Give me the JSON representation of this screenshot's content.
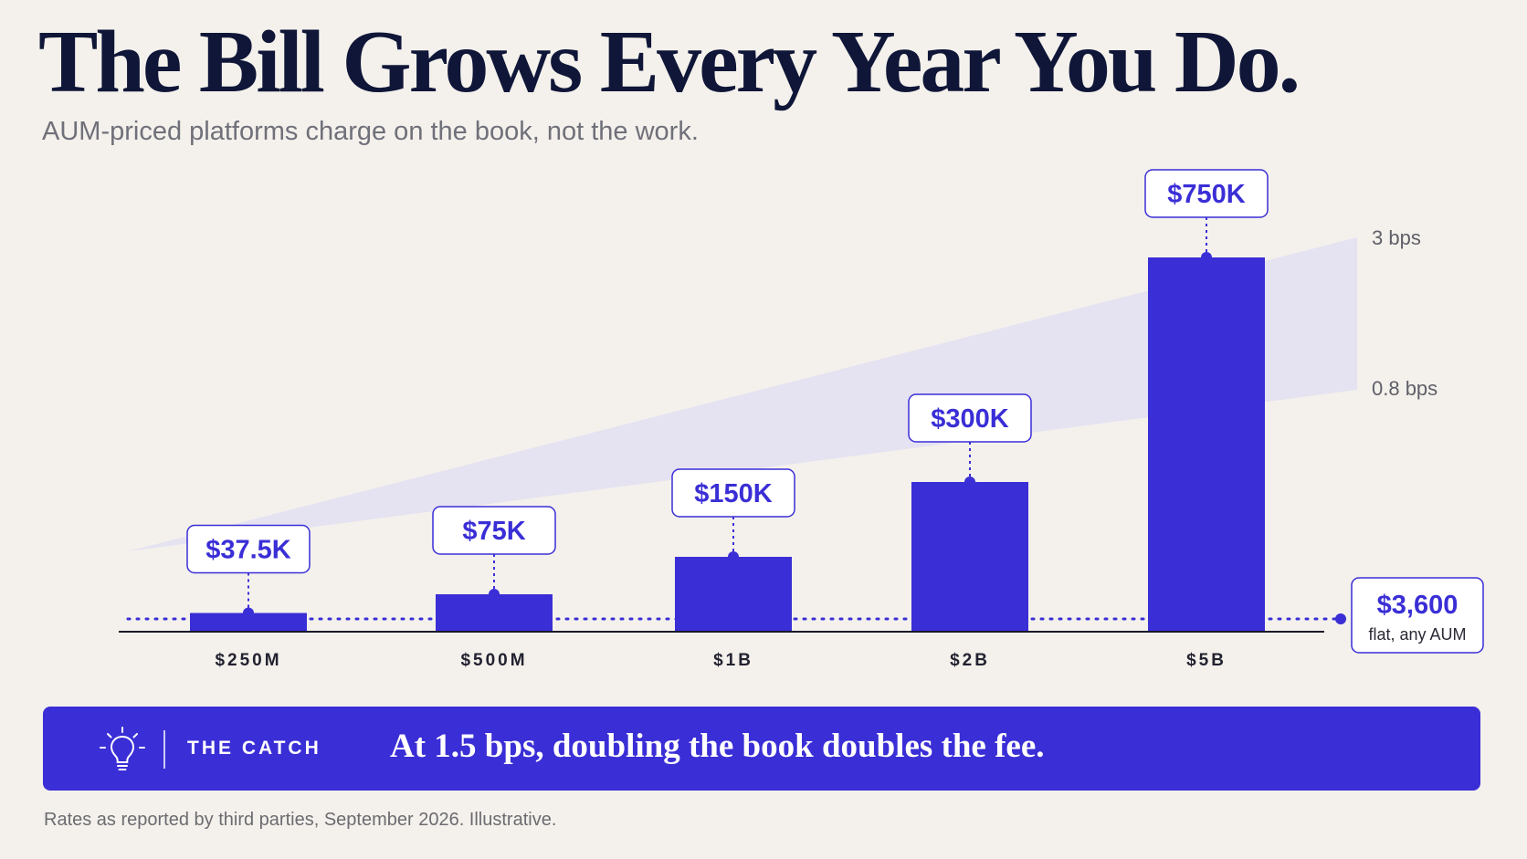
{
  "header": {
    "title": "The Bill Grows Every Year You Do.",
    "subtitle": "AUM-priced platforms charge on the book, not the work."
  },
  "chart_data": {
    "type": "bar",
    "categories": [
      "$250M",
      "$500M",
      "$1B",
      "$2B",
      "$5B"
    ],
    "values": [
      37500,
      75000,
      150000,
      300000,
      750000
    ],
    "value_labels": [
      "$37.5K",
      "$75K",
      "$150K",
      "$300K",
      "$750K"
    ],
    "band": {
      "upper_label": "3 bps",
      "lower_label": "0.8 bps"
    },
    "reference_line": {
      "value": 3600,
      "value_label": "$3,600",
      "caption": "flat, any AUM",
      "style": "dotted"
    },
    "grid": false,
    "legend": "none"
  },
  "callout": {
    "label": "THE CATCH",
    "message": "At 1.5 bps, doubling the book doubles the fee.",
    "icon": "lightbulb-icon"
  },
  "footnote": "Rates as reported by third parties, September 2026. Illustrative.",
  "colors": {
    "accent": "#3a2ed6",
    "band": "#e3e0f3",
    "background": "#f4f1ec",
    "title": "#0f1638"
  }
}
